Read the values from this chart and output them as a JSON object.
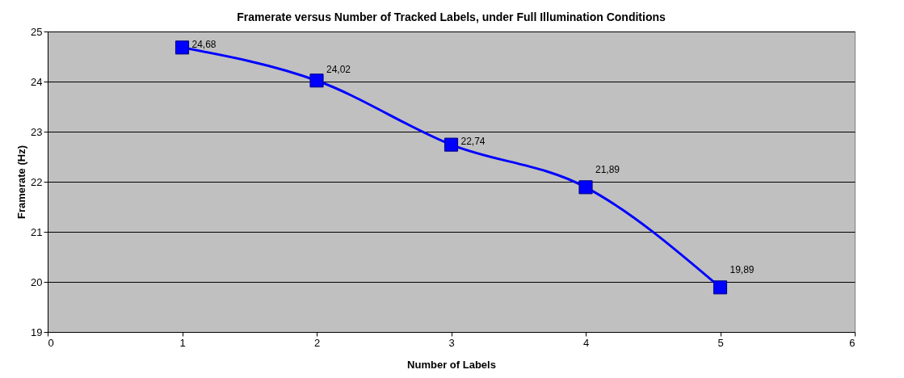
{
  "chart_data": {
    "type": "line",
    "title": "Framerate versus Number of Tracked Labels, under Full Illumination Conditions",
    "xlabel": "Number of Labels",
    "ylabel": "Framerate (Hz)",
    "x": [
      1,
      2,
      3,
      4,
      5
    ],
    "series": [
      {
        "color": "#0000ff",
        "values": [
          24.68,
          24.02,
          22.74,
          21.89,
          19.89
        ],
        "value_labels": [
          "24,68",
          "24,02",
          "22,74",
          "21,89",
          "19,89"
        ]
      }
    ],
    "xlim": [
      0,
      6
    ],
    "xticks": [
      0,
      1,
      2,
      3,
      4,
      5,
      6
    ],
    "ylim": [
      19,
      25
    ],
    "yticks": [
      19,
      20,
      21,
      22,
      23,
      24,
      25
    ],
    "grid": "y",
    "marker": "square",
    "line_style": "solid"
  }
}
